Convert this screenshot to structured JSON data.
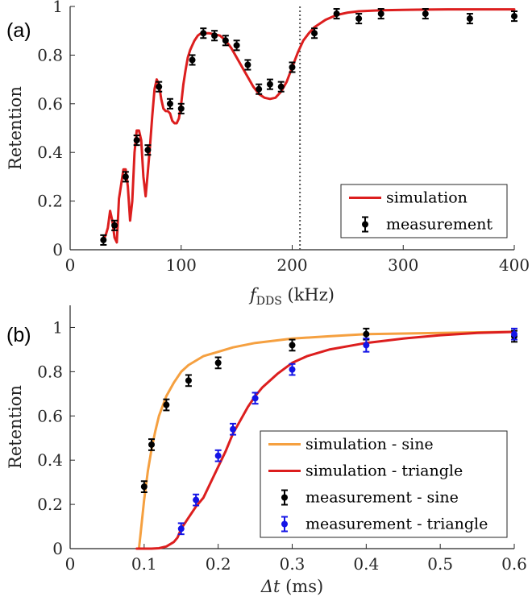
{
  "chart_data": [
    {
      "panel": "(a)",
      "type": "line",
      "xlim": [
        0,
        400
      ],
      "ylim": [
        0,
        1
      ],
      "xticks": [
        0,
        100,
        200,
        300,
        400
      ],
      "yticks": [
        0,
        0.2,
        0.4,
        0.6,
        0.8,
        1
      ],
      "xlabel_main": "f",
      "xlabel_sub": "DDS",
      "xlabel_unit": "(kHz)",
      "ylabel": "Retention",
      "vline_x": 207,
      "legend_position": "bottom-right",
      "series": [
        {
          "name": "simulation",
          "kind": "line",
          "color": "#dc1e1e",
          "x": [
            30,
            32,
            34,
            36,
            38,
            40,
            42,
            44,
            46,
            48,
            50,
            52,
            54,
            56,
            58,
            60,
            62,
            64,
            66,
            68,
            70,
            72,
            74,
            76,
            78,
            80,
            82,
            84,
            86,
            88,
            90,
            92,
            94,
            96,
            98,
            100,
            102,
            104,
            106,
            108,
            110,
            112,
            115,
            118,
            120,
            125,
            130,
            135,
            140,
            145,
            150,
            155,
            160,
            165,
            170,
            175,
            180,
            185,
            190,
            195,
            200,
            205,
            210,
            215,
            220,
            230,
            240,
            250,
            260,
            280,
            300,
            320,
            340,
            360,
            380,
            400
          ],
          "y": [
            0.04,
            0.06,
            0.09,
            0.16,
            0.12,
            0.05,
            0.03,
            0.21,
            0.27,
            0.33,
            0.33,
            0.26,
            0.12,
            0.2,
            0.4,
            0.49,
            0.49,
            0.45,
            0.3,
            0.22,
            0.32,
            0.43,
            0.55,
            0.66,
            0.7,
            0.68,
            0.62,
            0.58,
            0.57,
            0.57,
            0.56,
            0.53,
            0.52,
            0.52,
            0.54,
            0.6,
            0.68,
            0.74,
            0.79,
            0.82,
            0.84,
            0.86,
            0.88,
            0.89,
            0.89,
            0.89,
            0.885,
            0.88,
            0.86,
            0.83,
            0.79,
            0.75,
            0.71,
            0.67,
            0.64,
            0.625,
            0.62,
            0.625,
            0.65,
            0.69,
            0.75,
            0.81,
            0.86,
            0.89,
            0.915,
            0.945,
            0.965,
            0.975,
            0.98,
            0.984,
            0.986,
            0.987,
            0.988,
            0.988,
            0.988,
            0.988
          ]
        },
        {
          "name": "measurement",
          "kind": "errorbar",
          "color": "#000000",
          "x": [
            30,
            40,
            50,
            60,
            70,
            80,
            90,
            100,
            110,
            120,
            130,
            140,
            150,
            160,
            170,
            180,
            190,
            200,
            220,
            240,
            260,
            280,
            320,
            360,
            400
          ],
          "y": [
            0.04,
            0.1,
            0.3,
            0.45,
            0.41,
            0.67,
            0.6,
            0.58,
            0.78,
            0.89,
            0.88,
            0.86,
            0.84,
            0.76,
            0.66,
            0.68,
            0.67,
            0.75,
            0.89,
            0.97,
            0.95,
            0.97,
            0.97,
            0.95,
            0.96
          ],
          "err": [
            0.02,
            0.02,
            0.02,
            0.02,
            0.02,
            0.02,
            0.02,
            0.02,
            0.02,
            0.02,
            0.02,
            0.02,
            0.02,
            0.02,
            0.02,
            0.02,
            0.02,
            0.02,
            0.02,
            0.02,
            0.02,
            0.02,
            0.02,
            0.02,
            0.02
          ]
        }
      ]
    },
    {
      "panel": "(b)",
      "type": "line",
      "xlim": [
        0,
        0.6
      ],
      "ylim": [
        0,
        1.1
      ],
      "xticks": [
        0,
        0.1,
        0.2,
        0.3,
        0.4,
        0.5,
        0.6
      ],
      "yticks": [
        0,
        0.2,
        0.4,
        0.6,
        0.8,
        1
      ],
      "xlabel_main": "Δt",
      "xlabel_unit": "(ms)",
      "ylabel": "Retention",
      "legend_position": "bottom-right",
      "series": [
        {
          "name": "simulation - sine",
          "kind": "line",
          "color": "#f5a040",
          "x": [
            0.093,
            0.095,
            0.1,
            0.105,
            0.11,
            0.115,
            0.12,
            0.13,
            0.14,
            0.15,
            0.16,
            0.17,
            0.18,
            0.2,
            0.22,
            0.25,
            0.3,
            0.35,
            0.4,
            0.5,
            0.6
          ],
          "y": [
            0,
            0.06,
            0.22,
            0.35,
            0.45,
            0.53,
            0.6,
            0.69,
            0.75,
            0.8,
            0.83,
            0.85,
            0.87,
            0.89,
            0.91,
            0.93,
            0.95,
            0.96,
            0.97,
            0.975,
            0.98
          ]
        },
        {
          "name": "simulation - triangle",
          "kind": "line",
          "color": "#dc1e1e",
          "x": [
            0.09,
            0.11,
            0.12,
            0.13,
            0.14,
            0.145,
            0.15,
            0.16,
            0.17,
            0.18,
            0.19,
            0.2,
            0.21,
            0.22,
            0.23,
            0.24,
            0.25,
            0.26,
            0.28,
            0.3,
            0.32,
            0.35,
            0.4,
            0.45,
            0.5,
            0.55,
            0.6
          ],
          "y": [
            0,
            0,
            0.002,
            0.01,
            0.03,
            0.05,
            0.09,
            0.14,
            0.19,
            0.23,
            0.3,
            0.37,
            0.44,
            0.52,
            0.58,
            0.64,
            0.69,
            0.73,
            0.79,
            0.84,
            0.87,
            0.9,
            0.93,
            0.95,
            0.965,
            0.975,
            0.98
          ]
        },
        {
          "name": "measurement - sine",
          "kind": "errorbar",
          "color": "#000000",
          "x": [
            0.1,
            0.11,
            0.13,
            0.16,
            0.2,
            0.3,
            0.4,
            0.6
          ],
          "y": [
            0.28,
            0.47,
            0.65,
            0.76,
            0.84,
            0.92,
            0.97,
            0.96
          ],
          "err": [
            0.025,
            0.025,
            0.025,
            0.025,
            0.025,
            0.025,
            0.025,
            0.025
          ]
        },
        {
          "name": "measurement - triangle",
          "kind": "errorbar",
          "color": "#1414e6",
          "x": [
            0.15,
            0.17,
            0.2,
            0.22,
            0.25,
            0.3,
            0.4,
            0.6
          ],
          "y": [
            0.09,
            0.22,
            0.42,
            0.54,
            0.68,
            0.81,
            0.92,
            0.97
          ],
          "err": [
            0.025,
            0.025,
            0.025,
            0.025,
            0.025,
            0.025,
            0.03,
            0.025
          ]
        }
      ]
    }
  ]
}
